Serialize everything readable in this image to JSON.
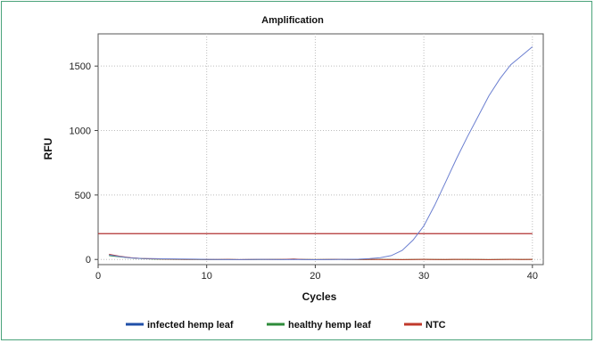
{
  "chart_data": {
    "type": "line",
    "title": "Amplification",
    "xlabel": "Cycles",
    "ylabel": "RFU",
    "xlim": [
      0,
      41
    ],
    "ylim": [
      -40,
      1750
    ],
    "xticks": [
      0,
      10,
      20,
      30,
      40
    ],
    "yticks": [
      0,
      500,
      1000,
      1500
    ],
    "grid": true,
    "legend_position": "bottom",
    "threshold": {
      "value": 200,
      "x_range": [
        0,
        40
      ],
      "color": "#b03030"
    },
    "series": [
      {
        "name": "infected hemp leaf",
        "color": "#1f4fa8",
        "curve_color": "#6b7fd0",
        "x": [
          1,
          2,
          3,
          4,
          5,
          6,
          7,
          8,
          9,
          10,
          11,
          12,
          13,
          14,
          15,
          16,
          17,
          18,
          19,
          20,
          21,
          22,
          23,
          24,
          25,
          26,
          27,
          28,
          29,
          30,
          31,
          32,
          33,
          34,
          35,
          36,
          37,
          38,
          39,
          40
        ],
        "y": [
          35,
          22,
          12,
          8,
          6,
          5,
          4,
          3,
          2,
          1,
          0,
          -1,
          -1,
          0,
          1,
          0,
          -1,
          0,
          -1,
          -2,
          -1,
          0,
          1,
          2,
          6,
          14,
          30,
          70,
          150,
          260,
          420,
          600,
          780,
          950,
          1110,
          1270,
          1400,
          1510,
          1580,
          1650
        ]
      },
      {
        "name": "healthy hemp leaf",
        "color": "#2e8b3a",
        "x": [
          1,
          2,
          3,
          4,
          5,
          6,
          7,
          8,
          9,
          10,
          11,
          12,
          13,
          14,
          15,
          16,
          17,
          18,
          19,
          20,
          21,
          22,
          23,
          24,
          25,
          26,
          27,
          28,
          29,
          30,
          31,
          32,
          33,
          34,
          35,
          36,
          37,
          38,
          39,
          40
        ],
        "y": [
          30,
          20,
          12,
          6,
          3,
          2,
          1,
          0,
          0,
          -1,
          -1,
          0,
          -2,
          -1,
          0,
          1,
          0,
          2,
          0,
          -1,
          0,
          1,
          0,
          -1,
          0,
          1,
          0,
          -1,
          0,
          1,
          0,
          -1,
          0,
          1,
          0,
          -1,
          0,
          1,
          0,
          0
        ]
      },
      {
        "name": "NTC",
        "color": "#c0392b",
        "x": [
          1,
          2,
          3,
          4,
          5,
          6,
          7,
          8,
          9,
          10,
          11,
          12,
          13,
          14,
          15,
          16,
          17,
          18,
          19,
          20,
          21,
          22,
          23,
          24,
          25,
          26,
          27,
          28,
          29,
          30,
          31,
          32,
          33,
          34,
          35,
          36,
          37,
          38,
          39,
          40
        ],
        "y": [
          40,
          25,
          14,
          8,
          5,
          3,
          2,
          1,
          1,
          0,
          0,
          1,
          -1,
          0,
          1,
          0,
          1,
          3,
          0,
          -1,
          0,
          1,
          0,
          0,
          1,
          0,
          0,
          -1,
          0,
          1,
          0,
          0,
          1,
          0,
          0,
          -1,
          0,
          1,
          0,
          1
        ]
      }
    ]
  }
}
